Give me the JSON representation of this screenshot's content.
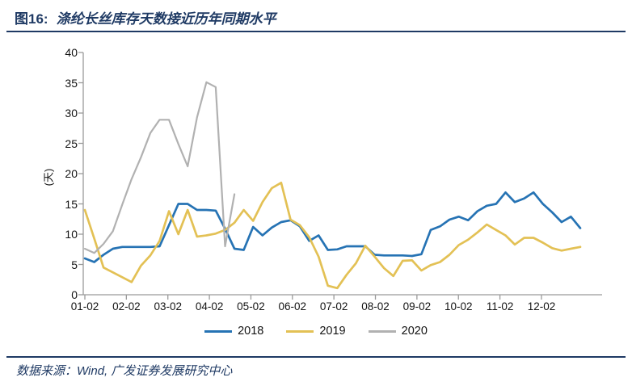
{
  "header": {
    "figure_label": "图16:",
    "title": "涤纶长丝库存天数接近历年同期水平"
  },
  "chart_data": {
    "type": "line",
    "title": "涤纶长丝库存天数接近历年同期水平",
    "xlabel": "",
    "ylabel": "(天)",
    "ylim": [
      0,
      40
    ],
    "y_ticks": [
      0,
      5,
      10,
      15,
      20,
      25,
      30,
      35,
      40
    ],
    "x_tick_labels": [
      "01-02",
      "02-02",
      "03-02",
      "04-02",
      "05-02",
      "06-02",
      "07-02",
      "08-02",
      "09-02",
      "10-02",
      "11-02",
      "12-02"
    ],
    "gridlines": false,
    "legend_position": "bottom",
    "axis_color": "#9a9a9a",
    "series": [
      {
        "name": "2018",
        "color": "#2673b4",
        "values": [
          6,
          5.4,
          6.6,
          7.6,
          7.9,
          7.9,
          7.9,
          7.9,
          8,
          11.5,
          15,
          15,
          14,
          14,
          13.9,
          10.9,
          7.6,
          7.4,
          11.2,
          9.8,
          11.1,
          12,
          12.3,
          11.3,
          8.9,
          9.8,
          7.4,
          7.5,
          8,
          8,
          8,
          6.6,
          6.5,
          6.5,
          6.5,
          6.4,
          6.7,
          10.7,
          11.3,
          12.4,
          12.9,
          12.3,
          13.8,
          14.7,
          15,
          16.9,
          15.3,
          15.9,
          16.9,
          15,
          13.6,
          12,
          12.9,
          11
        ]
      },
      {
        "name": "2019",
        "color": "#e3c155",
        "values": [
          14,
          9.3,
          4.5,
          3.7,
          2.9,
          2.1,
          4.8,
          6.5,
          8.9,
          13.8,
          10,
          14,
          9.6,
          9.8,
          10.1,
          10.7,
          11.9,
          14,
          12.2,
          15.3,
          17.6,
          18.5,
          12.4,
          11.5,
          9.5,
          6.3,
          1.5,
          1.1,
          3.3,
          5.2,
          8.1,
          6.3,
          4.4,
          3.1,
          5.6,
          5.7,
          4,
          4.9,
          5.4,
          6.6,
          8.2,
          9.1,
          10.3,
          11.6,
          10.7,
          9.8,
          8.3,
          9.4,
          9.4,
          8.6,
          7.7,
          7.3,
          7.6,
          7.9
        ]
      },
      {
        "name": "2020",
        "color": "#b1b1b1",
        "values": [
          7.6,
          6.9,
          8.4,
          10.5,
          14.9,
          19.1,
          22.7,
          26.7,
          28.9,
          28.9,
          24.9,
          21.2,
          29.3,
          35.1,
          34.3,
          8,
          16.6
        ]
      }
    ]
  },
  "footer": {
    "source": "数据来源：Wind, 广发证券发展研究中心"
  }
}
